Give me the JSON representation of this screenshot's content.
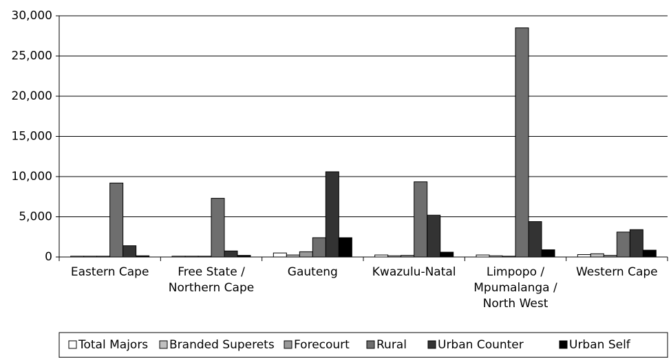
{
  "chart_data": {
    "type": "bar",
    "categories": [
      [
        "Eastern Cape"
      ],
      [
        "Free State /",
        "Northern Cape"
      ],
      [
        "Gauteng"
      ],
      [
        "Kwazulu-Natal"
      ],
      [
        "Limpopo /",
        "Mpumalanga /",
        "North West"
      ],
      [
        "Western Cape"
      ]
    ],
    "series": [
      {
        "name": "Total Majors",
        "color": "#ffffff",
        "values": [
          100,
          100,
          500,
          250,
          250,
          300
        ]
      },
      {
        "name": "Branded Superets",
        "color": "#c0c0c0",
        "values": [
          100,
          100,
          250,
          150,
          150,
          400
        ]
      },
      {
        "name": "Forecourt",
        "color": "#999999",
        "values": [
          100,
          100,
          650,
          200,
          100,
          200
        ]
      },
      {
        "name": "Rural",
        "color": "#6e6e6e",
        "values": [
          9200,
          7300,
          2400,
          9350,
          28500,
          3100
        ]
      },
      {
        "name": "Urban Counter",
        "color": "#333333",
        "values": [
          1400,
          750,
          10600,
          5200,
          4400,
          3400
        ]
      },
      {
        "name": "Urban Self",
        "color": "#000000",
        "values": [
          150,
          200,
          2400,
          600,
          900,
          850
        ]
      }
    ],
    "ylim": [
      0,
      30000
    ],
    "yticks": [
      0,
      {
        "value": 5000,
        "label": "5,000"
      },
      {
        "value": 10000,
        "label": "10,000"
      },
      {
        "value": 15000,
        "label": "15,000"
      },
      {
        "value": 20000,
        "label": "20,000"
      },
      {
        "value": 25000,
        "label": "25,000"
      },
      {
        "value": 30000,
        "label": "30,000"
      }
    ],
    "grid": true
  }
}
